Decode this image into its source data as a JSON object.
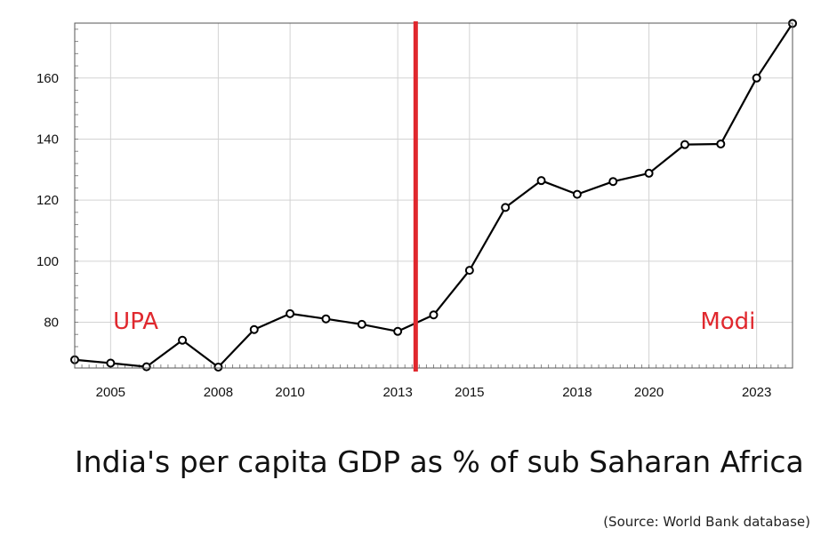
{
  "chart_data": {
    "type": "line",
    "title": "India's per capita GDP as % of sub Saharan Africa",
    "source": "(Source: World Bank database)",
    "xlabel": "",
    "ylabel": "",
    "x": [
      2004,
      2005,
      2006,
      2007,
      2008,
      2009,
      2010,
      2011,
      2012,
      2013,
      2014,
      2015,
      2016,
      2017,
      2018,
      2019,
      2020,
      2021,
      2022,
      2023,
      2024
    ],
    "series": [
      {
        "values": [
          67.7,
          66.6,
          65.4,
          74.1,
          65.3,
          77.6,
          82.8,
          81.1,
          79.3,
          77.0,
          82.4,
          97.0,
          117.6,
          126.4,
          121.9,
          126.1,
          128.8,
          138.2,
          138.4,
          160.0,
          177.9
        ]
      }
    ],
    "xlim": [
      2004,
      2024
    ],
    "ylim": [
      65,
      178
    ],
    "x_ticks": [
      {
        "value": 2005,
        "label": "2005"
      },
      {
        "value": 2008,
        "label": "2008"
      },
      {
        "value": 2010,
        "label": "2010"
      },
      {
        "value": 2013,
        "label": "2013"
      },
      {
        "value": 2015,
        "label": "2015"
      },
      {
        "value": 2018,
        "label": "2018"
      },
      {
        "value": 2020,
        "label": "2020"
      },
      {
        "value": 2023,
        "label": "2023"
      }
    ],
    "y_ticks": [
      80,
      100,
      120,
      140,
      160
    ],
    "divider": {
      "x": 2013.5,
      "color": "#e0282e"
    },
    "annotations": [
      {
        "text": "UPA",
        "x": 2005.7,
        "y": 80.5
      },
      {
        "text": "Modi",
        "x": 2022.2,
        "y": 80.5
      }
    ],
    "grid": true,
    "line_color": "#000000",
    "annotation_color": "#e0282e"
  }
}
